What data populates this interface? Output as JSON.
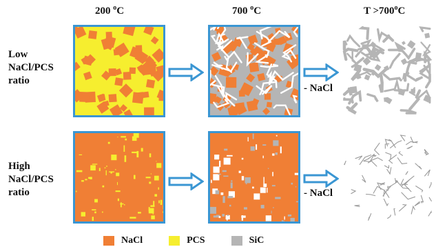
{
  "columns": [
    {
      "temp": "200 ",
      "unit": "C",
      "sup": "o"
    },
    {
      "temp": "700 ",
      "unit": "C",
      "sup": "o"
    },
    {
      "temp": "T >700",
      "unit": "C",
      "sup": "o"
    }
  ],
  "rows": [
    {
      "label_lines": [
        "Low",
        "NaCl/PCS",
        "ratio"
      ]
    },
    {
      "label_lines": [
        "High",
        "NaCl/PCS",
        "ratio"
      ]
    }
  ],
  "removal_label": "- NaCl",
  "legend": [
    {
      "label": "NaCl",
      "color": "#f07f35"
    },
    {
      "label": "PCS",
      "color": "#f6ee2f"
    },
    {
      "label": "SiC",
      "color": "#b5b5b5"
    }
  ],
  "colors": {
    "frame": "#3a96d3",
    "arrow": "#3a96d3",
    "sic": "#b5b5b5",
    "nacl": "#f07f35",
    "pcs": "#f6ee2f"
  }
}
